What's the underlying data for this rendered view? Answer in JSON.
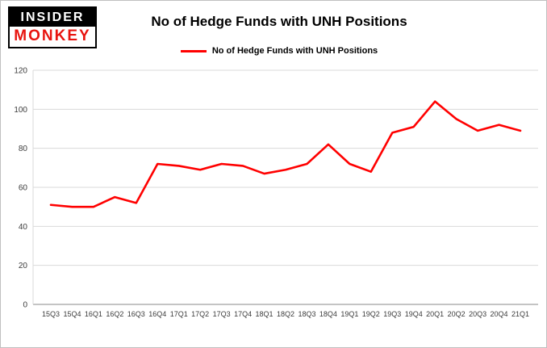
{
  "logo": {
    "top": "INSIDER",
    "bottom": "MONKEY"
  },
  "chart_data": {
    "type": "line",
    "title": "No of Hedge Funds with UNH Positions",
    "legend": "No of Hedge Funds with UNH Positions",
    "categories": [
      "15Q3",
      "15Q4",
      "16Q1",
      "16Q2",
      "16Q3",
      "16Q4",
      "17Q1",
      "17Q2",
      "17Q3",
      "17Q4",
      "18Q1",
      "18Q2",
      "18Q3",
      "18Q4",
      "19Q1",
      "19Q2",
      "19Q3",
      "19Q4",
      "20Q1",
      "20Q2",
      "20Q3",
      "20Q4",
      "21Q1"
    ],
    "values": [
      51,
      50,
      50,
      55,
      52,
      72,
      71,
      69,
      72,
      71,
      67,
      69,
      72,
      82,
      72,
      68,
      88,
      91,
      104,
      95,
      89,
      92,
      89
    ],
    "xlabel": "",
    "ylabel": "",
    "ylim": [
      0,
      120
    ],
    "yticks": [
      0,
      20,
      40,
      60,
      80,
      100,
      120
    ],
    "grid": true,
    "legend_position": "top",
    "line_color": "#ff0000",
    "grid_color": "#d9d9d9",
    "baseline_color": "#898989",
    "label_color": "#3c3c3c"
  }
}
